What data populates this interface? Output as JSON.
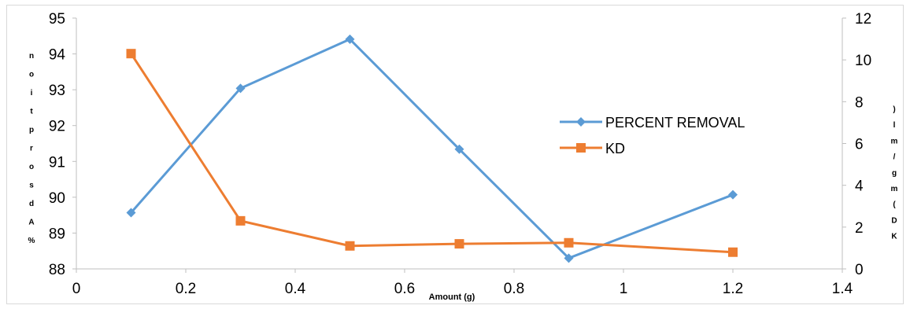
{
  "chart_data": {
    "type": "line",
    "title": "",
    "xlabel": "Amount (g)",
    "ylabel_left": "% Adsorption",
    "ylabel_right": "KD (mg/ml)",
    "xlim": [
      0,
      1.4
    ],
    "ylim_left": [
      88,
      95
    ],
    "ylim_right": [
      0,
      12
    ],
    "x_ticks": [
      "0",
      "0.2",
      "0.4",
      "0.6",
      "0.8",
      "1",
      "1.2",
      "1.4"
    ],
    "y_left_ticks": [
      "88",
      "89",
      "90",
      "91",
      "92",
      "93",
      "94",
      "95"
    ],
    "y_right_ticks": [
      "0",
      "2",
      "4",
      "6",
      "8",
      "10",
      "12"
    ],
    "grid": false,
    "legend_position": "right",
    "series": [
      {
        "name": "PERCENT REMOVAL",
        "axis": "left",
        "color": "#5b9bd5",
        "marker": "diamond",
        "x": [
          0.1,
          0.3,
          0.5,
          0.7,
          0.9,
          1.2
        ],
        "values": [
          89.57,
          93.04,
          94.41,
          91.34,
          88.3,
          90.07
        ]
      },
      {
        "name": "KD",
        "axis": "right",
        "color": "#ed7d31",
        "marker": "square",
        "x": [
          0.1,
          0.3,
          0.5,
          0.7,
          0.9,
          1.2
        ],
        "values": [
          10.3,
          2.3,
          1.1,
          1.2,
          1.25,
          0.8
        ]
      }
    ]
  }
}
